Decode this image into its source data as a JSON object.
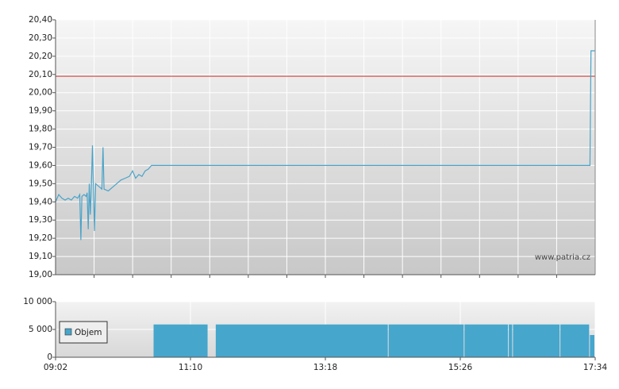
{
  "chart_data": [
    {
      "type": "line",
      "watermark": "www.patria.cz",
      "xlim": [
        "09:02",
        "17:34"
      ],
      "ylim": [
        19.0,
        20.4
      ],
      "yticks": [
        {
          "value": 19.0,
          "label": "19,00"
        },
        {
          "value": 19.1,
          "label": "19,10"
        },
        {
          "value": 19.2,
          "label": "19,20"
        },
        {
          "value": 19.3,
          "label": "19,30"
        },
        {
          "value": 19.4,
          "label": "19,40"
        },
        {
          "value": 19.5,
          "label": "19,50"
        },
        {
          "value": 19.6,
          "label": "19,60"
        },
        {
          "value": 19.7,
          "label": "19,70"
        },
        {
          "value": 19.8,
          "label": "19,80"
        },
        {
          "value": 19.9,
          "label": "19,90"
        },
        {
          "value": 20.0,
          "label": "20,00"
        },
        {
          "value": 20.1,
          "label": "20,10"
        },
        {
          "value": 20.2,
          "label": "20,20"
        },
        {
          "value": 20.3,
          "label": "20,30"
        },
        {
          "value": 20.4,
          "label": "20,40"
        }
      ],
      "reference_line": {
        "value": 20.09,
        "color": "#d04040"
      },
      "color": "#4aa3c8",
      "grid": true,
      "x": [
        "09:02",
        "09:05",
        "09:08",
        "09:11",
        "09:14",
        "09:17",
        "09:20",
        "09:23",
        "09:25",
        "09:26",
        "09:27",
        "09:29",
        "09:31",
        "09:32",
        "09:33",
        "09:34",
        "09:35",
        "09:36",
        "09:37",
        "09:38",
        "09:39",
        "09:40",
        "09:42",
        "09:44",
        "09:46",
        "09:47",
        "09:48",
        "09:52",
        "09:56",
        "10:00",
        "10:04",
        "10:08",
        "10:12",
        "10:15",
        "10:18",
        "10:21",
        "10:24",
        "10:27",
        "10:30",
        "10:33",
        "17:29",
        "17:30",
        "17:34"
      ],
      "values": [
        19.4,
        19.44,
        19.42,
        19.41,
        19.42,
        19.41,
        19.43,
        19.42,
        19.44,
        19.19,
        19.43,
        19.44,
        19.43,
        19.45,
        19.25,
        19.5,
        19.33,
        19.5,
        19.71,
        19.47,
        19.24,
        19.5,
        19.49,
        19.48,
        19.47,
        19.7,
        19.47,
        19.46,
        19.48,
        19.5,
        19.52,
        19.53,
        19.54,
        19.57,
        19.53,
        19.55,
        19.54,
        19.57,
        19.58,
        19.6,
        19.6,
        20.23,
        20.23
      ]
    },
    {
      "type": "histogram",
      "xlim": [
        "09:02",
        "17:34"
      ],
      "xticks": [
        "09:02",
        "11:10",
        "13:18",
        "15:26",
        "17:34"
      ],
      "ylim": [
        0,
        10000
      ],
      "yticks": [
        0,
        {
          "value": 5000,
          "label": "5 000"
        },
        {
          "value": 10000,
          "label": "10 000"
        }
      ],
      "grid": true,
      "bins": [
        "09:02",
        "10:35",
        "11:27",
        "11:34",
        "14:18",
        "15:30",
        "16:12",
        "16:16",
        "17:01",
        "17:29",
        "17:34"
      ],
      "series": [
        {
          "name": "Objem",
          "color": "#46a6cc",
          "values": [
            0,
            5900,
            0,
            5900,
            5900,
            5900,
            5900,
            5900,
            5900,
            4000
          ]
        }
      ]
    }
  ]
}
